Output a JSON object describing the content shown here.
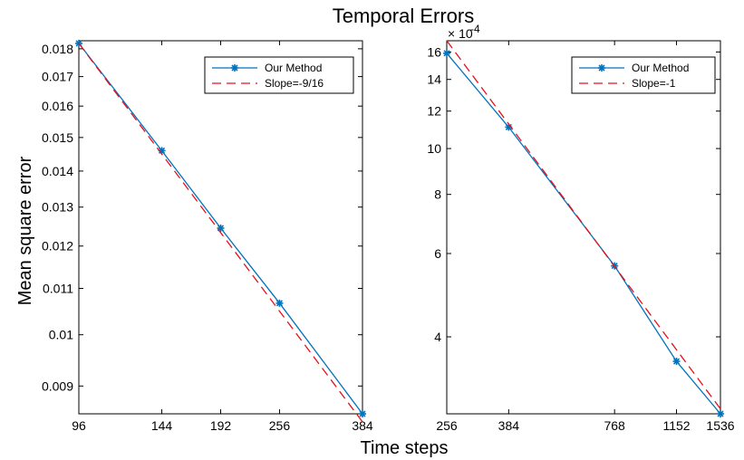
{
  "figure": {
    "title": "Temporal Errors",
    "xlabel": "Time steps",
    "ylabel": "Mean square error"
  },
  "colors": {
    "method": "#0072BD",
    "slope": "#E8101A",
    "axes": "#000000",
    "background": "#ffffff"
  },
  "chart_data": [
    {
      "type": "line",
      "scale": "loglog",
      "xlim": [
        96,
        384
      ],
      "ylim": [
        0.0085,
        0.0183
      ],
      "x_ticks": [
        96,
        144,
        192,
        256,
        384
      ],
      "x_tick_labels": [
        "96",
        "144",
        "192",
        "256",
        "384"
      ],
      "y_ticks": [
        0.009,
        0.01,
        0.011,
        0.012,
        0.013,
        0.014,
        0.015,
        0.016,
        0.017,
        0.018
      ],
      "y_tick_labels": [
        "0.009",
        "0.01",
        "0.011",
        "0.012",
        "0.013",
        "0.014",
        "0.015",
        "0.016",
        "0.017",
        "0.018"
      ],
      "y_exponent": "",
      "legend_position": "top-right",
      "series": [
        {
          "name": "Our Method",
          "style": "solid-star",
          "x": [
            96,
            144,
            192,
            256,
            384
          ],
          "y": [
            0.0182,
            0.0146,
            0.01245,
            0.01067,
            0.0085
          ]
        },
        {
          "name": "Slope=-9/16",
          "style": "dashed",
          "x": [
            96,
            384
          ],
          "y": [
            0.0182,
            0.00836
          ]
        }
      ]
    },
    {
      "type": "line",
      "scale": "loglog",
      "xlim": [
        256,
        1536
      ],
      "ylim": [
        2.75,
        16.9
      ],
      "x_ticks": [
        256,
        384,
        768,
        1152,
        1536
      ],
      "x_tick_labels": [
        "256",
        "384",
        "768",
        "1152",
        "1536"
      ],
      "y_ticks": [
        4,
        6,
        8,
        10,
        12,
        14,
        16
      ],
      "y_tick_labels": [
        "4",
        "6",
        "8",
        "10",
        "12",
        "14",
        "16"
      ],
      "y_exponent_base": "× 10",
      "y_exponent": "-4",
      "legend_position": "top-right",
      "series": [
        {
          "name": "Our Method",
          "style": "solid-star",
          "x": [
            256,
            384,
            768,
            1152,
            1536
          ],
          "y": [
            15.9,
            11.1,
            5.65,
            3.55,
            2.75
          ]
        },
        {
          "name": "Slope=-1",
          "style": "dashed",
          "x": [
            256,
            1536
          ],
          "y": [
            16.9,
            2.817
          ]
        }
      ]
    }
  ]
}
